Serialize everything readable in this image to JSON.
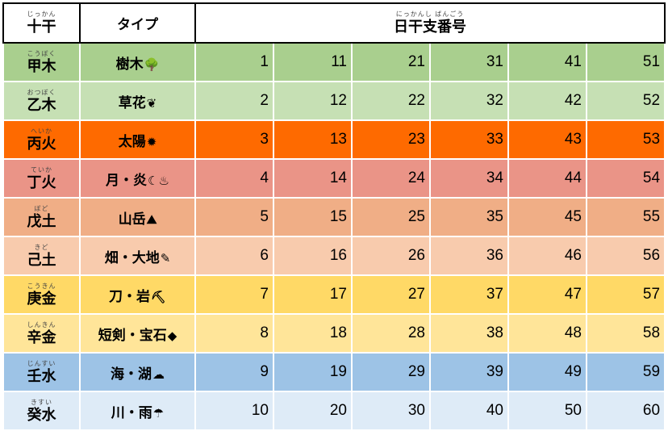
{
  "header": {
    "kan_ruby": "じっかん",
    "kan_label": "十干",
    "type_label": "タイプ",
    "num_ruby": "にっかんし ばんごう",
    "num_label": "日干支番号"
  },
  "rows": [
    {
      "ruby": "こうぼく",
      "kan": "甲木",
      "type": "樹木",
      "icon": "🌳",
      "icon_name": "tree-icon",
      "bg": "#a9cf8e",
      "nums": [
        "1",
        "11",
        "21",
        "31",
        "41",
        "51"
      ]
    },
    {
      "ruby": "おつぼく",
      "kan": "乙木",
      "type": "草花",
      "icon": "❦",
      "icon_name": "flower-icon",
      "bg": "#c6e0b4",
      "nums": [
        "2",
        "12",
        "22",
        "32",
        "42",
        "52"
      ]
    },
    {
      "ruby": "へいか",
      "kan": "丙火",
      "type": "太陽",
      "icon": "✹",
      "icon_name": "sun-icon",
      "bg": "#fe6a00",
      "nums": [
        "3",
        "13",
        "23",
        "33",
        "43",
        "53"
      ]
    },
    {
      "ruby": "ていか",
      "kan": "丁火",
      "type": "月・炎",
      "icon": "☾♨",
      "icon_name": "moon-flame-icon",
      "bg": "#ea9487",
      "nums": [
        "4",
        "14",
        "24",
        "34",
        "44",
        "54"
      ]
    },
    {
      "ruby": "ぼど",
      "kan": "戊土",
      "type": "山岳",
      "icon": "⛰",
      "icon_name": "mountain-icon",
      "bg": "#f0ae86",
      "nums": [
        "5",
        "15",
        "25",
        "35",
        "45",
        "55"
      ]
    },
    {
      "ruby": "きど",
      "kan": "己土",
      "type": "畑・大地",
      "icon": "✎",
      "icon_name": "soil-icon",
      "bg": "#f8cbad",
      "nums": [
        "6",
        "16",
        "26",
        "36",
        "46",
        "56"
      ]
    },
    {
      "ruby": "こうきん",
      "kan": "庚金",
      "type": "刀・岩",
      "icon": "⛏",
      "icon_name": "rock-icon",
      "bg": "#ffd966",
      "nums": [
        "7",
        "17",
        "27",
        "37",
        "47",
        "57"
      ]
    },
    {
      "ruby": "しんきん",
      "kan": "辛金",
      "type": "短剣・宝石",
      "icon": "◆",
      "icon_name": "gem-icon",
      "bg": "#ffe599",
      "nums": [
        "8",
        "18",
        "28",
        "38",
        "48",
        "58"
      ]
    },
    {
      "ruby": "じんすい",
      "kan": "壬水",
      "type": "海・湖",
      "icon": "☁",
      "icon_name": "water-icon",
      "bg": "#9dc3e6",
      "nums": [
        "9",
        "19",
        "29",
        "39",
        "49",
        "59"
      ]
    },
    {
      "ruby": "きすい",
      "kan": "癸水",
      "type": "川・雨",
      "icon": "☂",
      "icon_name": "rain-icon",
      "bg": "#deebf7",
      "nums": [
        "10",
        "20",
        "30",
        "40",
        "50",
        "60"
      ]
    }
  ]
}
